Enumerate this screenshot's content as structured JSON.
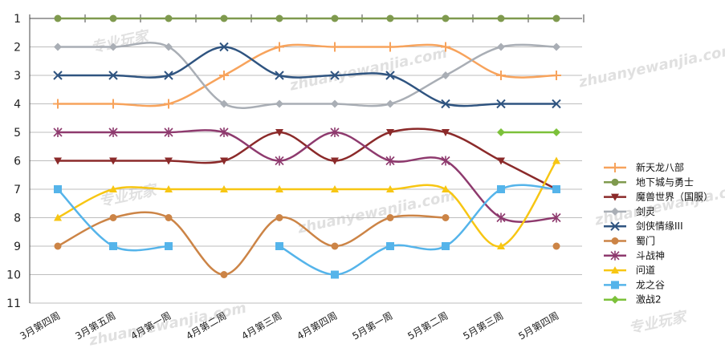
{
  "chart_data": {
    "type": "line",
    "title": "",
    "xlabel": "",
    "ylabel": "",
    "y_inverted": true,
    "ylim": [
      1,
      11
    ],
    "grid": true,
    "legend_position": "right",
    "categories": [
      "3月第四周",
      "3月第五周",
      "4月第一周",
      "4月第二周",
      "4月第三周",
      "4月第四周",
      "5月第一周",
      "5月第二周",
      "5月第三周",
      "5月第四周"
    ],
    "yticks": [
      "1",
      "2",
      "3",
      "4",
      "5",
      "6",
      "7",
      "8",
      "9",
      "10",
      "11"
    ],
    "series": [
      {
        "name": "新天龙八部",
        "color": "#f7a35c",
        "marker": "plus",
        "values": [
          4,
          4,
          4,
          3,
          2,
          2,
          2,
          2,
          3,
          3
        ]
      },
      {
        "name": "地下城与勇士",
        "color": "#7f9a4e",
        "marker": "circle",
        "values": [
          1,
          1,
          1,
          1,
          1,
          1,
          1,
          1,
          1,
          1
        ]
      },
      {
        "name": "魔兽世界（国服）",
        "color": "#8b2a2a",
        "marker": "triangle-down",
        "values": [
          6,
          6,
          6,
          6,
          5,
          6,
          5,
          5,
          6,
          7
        ]
      },
      {
        "name": "剑灵",
        "color": "#a9aeb5",
        "marker": "diamond",
        "values": [
          2,
          2,
          2,
          4,
          4,
          4,
          4,
          3,
          2,
          2
        ]
      },
      {
        "name": "剑侠情缘III",
        "color": "#2f5480",
        "marker": "x",
        "values": [
          3,
          3,
          3,
          2,
          3,
          3,
          3,
          4,
          4,
          4
        ]
      },
      {
        "name": "蜀门",
        "color": "#cc8446",
        "marker": "circle",
        "values": [
          9,
          8,
          8,
          10,
          8,
          9,
          8,
          8,
          null,
          9
        ]
      },
      {
        "name": "斗战神",
        "color": "#8e3a6e",
        "marker": "star",
        "values": [
          5,
          5,
          5,
          5,
          6,
          5,
          6,
          6,
          8,
          8
        ]
      },
      {
        "name": "问道",
        "color": "#f7c613",
        "marker": "triangle-up",
        "values": [
          8,
          7,
          7,
          7,
          7,
          7,
          7,
          7,
          9,
          6
        ]
      },
      {
        "name": "龙之谷",
        "color": "#55b4ea",
        "marker": "square",
        "values": [
          7,
          9,
          9,
          null,
          9,
          10,
          9,
          9,
          7,
          7
        ]
      },
      {
        "name": "激战2",
        "color": "#7cc13a",
        "marker": "diamond",
        "values": [
          null,
          null,
          null,
          null,
          null,
          null,
          null,
          null,
          5,
          5
        ]
      }
    ]
  },
  "watermarks": [
    "专业玩家",
    "zhuanyewanjia.com"
  ]
}
